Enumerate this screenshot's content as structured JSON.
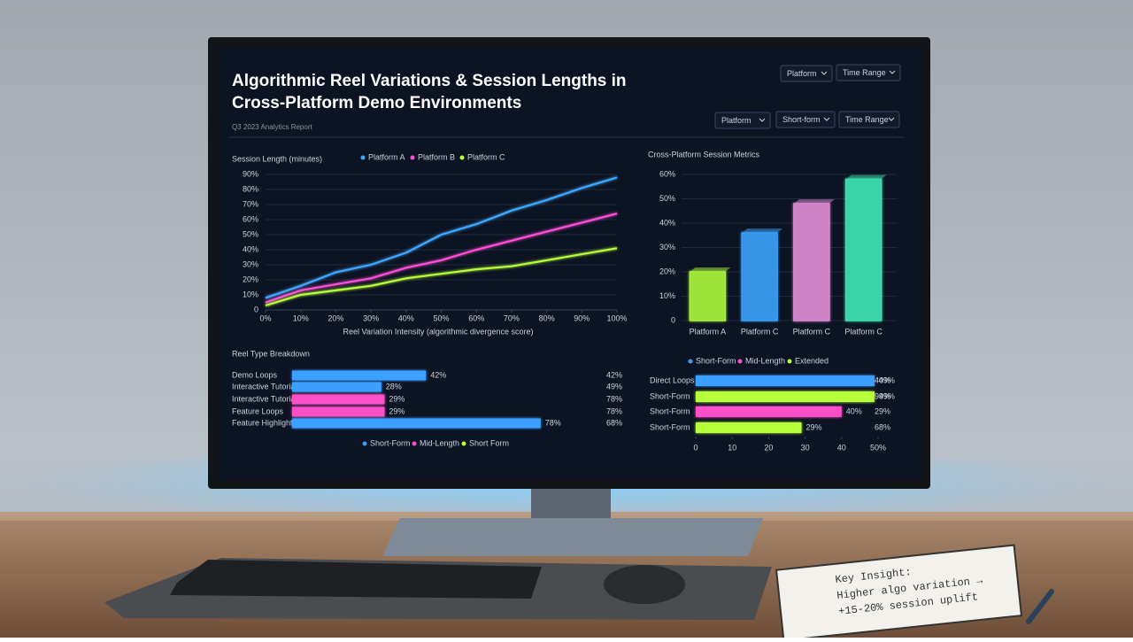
{
  "header": {
    "title_lines": [
      "Algorithmic Reel Variations & Session Lengths in",
      "Cross-Platform Demo Environments"
    ],
    "subtitle": "Q3 2023 Analytics Report",
    "filters_top": [
      "Platform",
      "Time Range"
    ],
    "filters": [
      "Platform",
      "Short-form",
      "Time Range"
    ]
  },
  "notebook": {
    "lines": [
      "Key Insight:",
      "Higher algo variation →",
      "+15-20% session uplift"
    ]
  },
  "chart_data": [
    {
      "type": "line",
      "title": "Session Length (minutes)",
      "x": [
        0,
        10,
        20,
        30,
        40,
        50,
        60,
        70,
        80,
        90,
        100
      ],
      "xlim": [
        0,
        100
      ],
      "xticks": [
        {
          "value": 0,
          "label": "0%"
        },
        {
          "value": 10,
          "label": "10%"
        },
        {
          "value": 20,
          "label": "20%"
        },
        {
          "value": 30,
          "label": "30%"
        },
        {
          "value": 40,
          "label": "40%"
        },
        {
          "value": 50,
          "label": "50%"
        },
        {
          "value": 60,
          "label": "60%"
        },
        {
          "value": 70,
          "label": "70%"
        },
        {
          "value": 80,
          "label": "80%"
        },
        {
          "value": 90,
          "label": "90%"
        },
        {
          "value": 100,
          "label": "100%"
        }
      ],
      "ylim": [
        0,
        90
      ],
      "yticks": [
        0,
        {
          "value": 10,
          "label": "10%"
        },
        {
          "value": 20,
          "label": "20%"
        },
        {
          "value": 30,
          "label": "30%"
        },
        {
          "value": 40,
          "label": "40%"
        },
        {
          "value": 50,
          "label": "50%"
        },
        {
          "value": 60,
          "label": "60%"
        },
        {
          "value": 70,
          "label": "70%"
        },
        {
          "value": 80,
          "label": "80%"
        },
        {
          "value": 90,
          "label": "90%"
        }
      ],
      "xlabel": "Reel Variation Intensity (algorithmic divergence score)",
      "grid": true,
      "series": [
        {
          "name": "Platform A",
          "color": "#3fa9ff",
          "values": [
            8,
            16,
            25,
            30,
            38,
            50,
            57,
            66,
            73,
            81,
            88
          ]
        },
        {
          "name": "Platform B",
          "color": "#ff4fd8",
          "values": [
            5,
            13,
            17,
            21,
            28,
            33,
            40,
            46,
            52,
            58,
            64
          ]
        },
        {
          "name": "Platform C",
          "color": "#b8ff3a",
          "values": [
            3,
            10,
            13,
            16,
            21,
            24,
            27,
            29,
            33,
            37,
            41
          ]
        }
      ]
    },
    {
      "type": "bar",
      "title": "Cross-Platform Session Metrics",
      "categories": [
        "Platform A",
        "Platform C",
        "Platform C",
        "Platform C"
      ],
      "values": [
        20,
        36,
        48,
        58
      ],
      "colors": [
        "#a6f23a",
        "#3a9ef5",
        "#d98ad2",
        "#3de0b0"
      ],
      "ylim": [
        0,
        60
      ],
      "yticks": [
        0,
        {
          "value": 10,
          "label": "10%"
        },
        {
          "value": 20,
          "label": "20%"
        },
        {
          "value": 30,
          "label": "30%"
        },
        {
          "value": 40,
          "label": "40%"
        },
        {
          "value": 50,
          "label": "50%"
        },
        {
          "value": 60,
          "label": "60%"
        }
      ],
      "grid": true
    },
    {
      "type": "hbar",
      "title": "Reel Type Breakdown",
      "categories": [
        "Demo Loops",
        "Interactive Tutorials",
        "Interactive Tutorials",
        "Feature Loops",
        "Feature Highlights"
      ],
      "values": [
        42,
        28,
        29,
        29,
        78
      ],
      "value_labels": [
        "42%",
        "28%",
        "29%",
        "29%",
        "78%"
      ],
      "colors": [
        "#3aa0ff",
        "#3aa0ff",
        "#ff4fc8",
        "#ff4fc8",
        "#3aa0ff"
      ],
      "side_labels": [
        "42%",
        "49%",
        "78%",
        "78%",
        "68%"
      ],
      "legend": [
        {
          "name": "Short-Form",
          "color": "#3aa0ff"
        },
        {
          "name": "Mid-Length",
          "color": "#ff4fc8"
        },
        {
          "name": "Short Form",
          "color": "#b8ff3a"
        }
      ]
    },
    {
      "type": "hbar",
      "categories": [
        "Direct Loops",
        "Short-Form",
        "Short-Form",
        "Short-Form"
      ],
      "values": [
        49,
        49,
        40,
        29
      ],
      "value_labels": [
        "49%",
        "49%",
        "40%",
        "29%"
      ],
      "colors": [
        "#3aa0ff",
        "#b8ff3a",
        "#ff4fc8",
        "#b8ff3a"
      ],
      "side_labels": [
        "40%",
        "99%",
        "29%",
        "68%"
      ],
      "legend": [
        {
          "name": "Short-Form",
          "color": "#3aa0ff"
        },
        {
          "name": "Mid-Length",
          "color": "#ff4fc8"
        },
        {
          "name": "Extended",
          "color": "#b8ff3a"
        }
      ],
      "xlim": [
        0,
        50
      ],
      "xticks": [
        0,
        10,
        20,
        30,
        40,
        {
          "value": 50,
          "label": "50%"
        }
      ]
    }
  ]
}
